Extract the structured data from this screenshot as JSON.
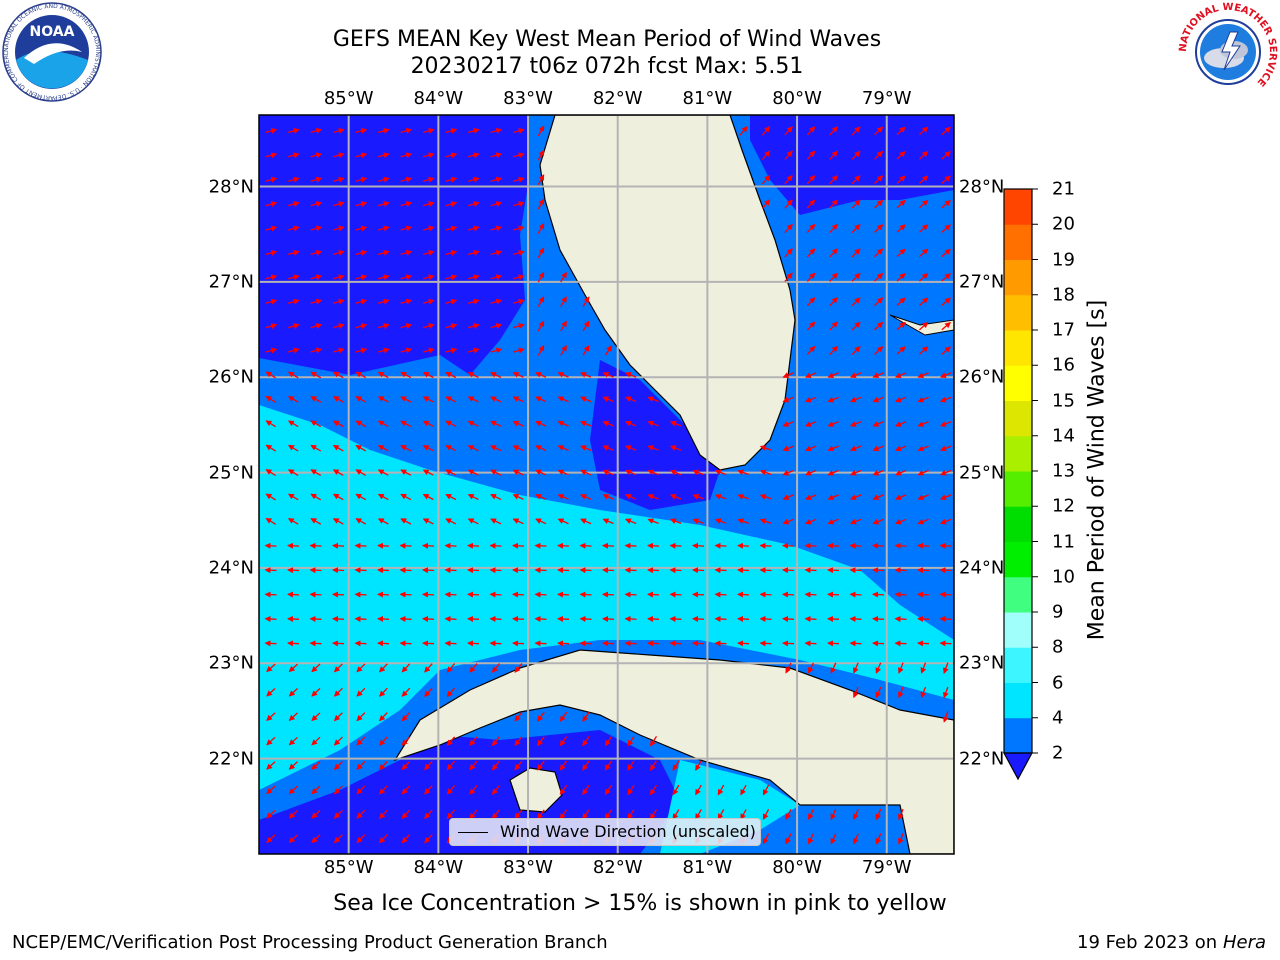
{
  "header": {
    "title_line1": "GEFS MEAN Key West Mean Period of Wind Waves",
    "title_line2": "20230217 t06z 072h fcst   Max: 5.51"
  },
  "logos": {
    "noaa_text": "NOAA",
    "noaa_ring_text": "NATIONAL OCEANIC AND ATMOSPHERIC ADMINISTRATION · U.S. DEPARTMENT OF COMMERCE",
    "nws_ring_text": "NATIONAL WEATHER SERVICE"
  },
  "map": {
    "lon_ticks": [
      "85°W",
      "84°W",
      "83°W",
      "82°W",
      "81°W",
      "80°W",
      "79°W"
    ],
    "lat_ticks": [
      "28°N",
      "27°N",
      "26°N",
      "25°N",
      "24°N",
      "23°N",
      "22°N"
    ],
    "lon_values": [
      -85,
      -84,
      -83,
      -82,
      -81,
      -80,
      -79
    ],
    "lat_values": [
      28,
      27,
      26,
      25,
      24,
      23,
      22
    ],
    "extent": {
      "lon_min": -86.0,
      "lon_max": -78.25,
      "lat_min": 21.0,
      "lat_max": 28.75
    },
    "gridlines": true,
    "arrow_color": "#ff0000",
    "land_color": "#efefde",
    "legend_label": "Wind Wave Direction (unscaled)",
    "legend_placement": "bottom-center"
  },
  "colorbar": {
    "label": "Mean Period of Wind Waves [s]",
    "tick_labels": [
      "2",
      "4",
      "6",
      "8",
      "9",
      "10",
      "11",
      "12",
      "13",
      "14",
      "15",
      "16",
      "17",
      "18",
      "19",
      "20",
      "21"
    ],
    "levels": [
      2,
      4,
      6,
      8,
      9,
      10,
      11,
      12,
      13,
      14,
      15,
      16,
      17,
      18,
      19,
      20,
      21
    ],
    "colors": [
      "#0077ff",
      "#00e5ff",
      "#3df5ff",
      "#a0fffa",
      "#40ff80",
      "#00ee00",
      "#00dd00",
      "#55ee00",
      "#aaee00",
      "#dde600",
      "#ffff00",
      "#ffe600",
      "#ffbf00",
      "#ff9a00",
      "#ff7000",
      "#ff4500",
      "#ff0000"
    ],
    "extend_color": "#1a1aff"
  },
  "notes": {
    "ice": "Sea Ice Concentration > 15% is shown in pink to yellow"
  },
  "footer": {
    "left": "NCEP/EMC/Verification Post Processing Product Generation Branch",
    "right_date": "19 Feb 2023 on",
    "right_machine": "Hera"
  }
}
